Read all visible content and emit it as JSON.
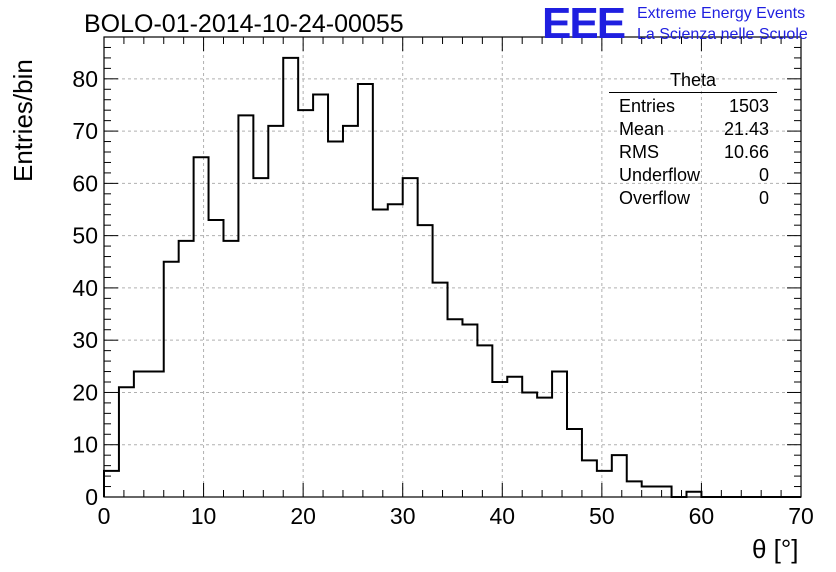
{
  "header": {
    "title": "BOLO-01-2014-10-24-00055",
    "logo_letters": "EEE",
    "logo_line1": "Extreme Energy Events",
    "logo_line2": "La Scienza nelle Scuole"
  },
  "stats_box": {
    "title": "Theta",
    "rows": [
      {
        "label": "Entries",
        "value": "1503"
      },
      {
        "label": "Mean",
        "value": "21.43"
      },
      {
        "label": "RMS",
        "value": "10.66"
      },
      {
        "label": "Underflow",
        "value": "0"
      },
      {
        "label": "Overflow",
        "value": "0"
      }
    ]
  },
  "colors": {
    "accent": "#1f1fe0",
    "line": "#000000",
    "grid": "#b0b0b0"
  },
  "chart_data": {
    "type": "bar",
    "style": "step-histogram",
    "xlabel": "θ [°]",
    "ylabel": "Entries/bin",
    "xlim": [
      0,
      70
    ],
    "ylim": [
      0,
      88
    ],
    "grid": true,
    "bin_width": 1.5,
    "x_ticks": [
      0,
      10,
      20,
      30,
      40,
      50,
      60,
      70
    ],
    "y_ticks": [
      0,
      10,
      20,
      30,
      40,
      50,
      60,
      70,
      80
    ],
    "bin_edges_start": 0,
    "values": [
      5,
      21,
      24,
      24,
      45,
      49,
      65,
      53,
      49,
      73,
      61,
      71,
      84,
      74,
      77,
      68,
      71,
      79,
      55,
      56,
      61,
      52,
      41,
      34,
      33,
      29,
      22,
      23,
      20,
      19,
      24,
      13,
      7,
      5,
      8,
      3,
      2,
      2,
      0,
      1,
      0,
      0,
      0,
      0,
      0,
      0,
      0
    ]
  }
}
